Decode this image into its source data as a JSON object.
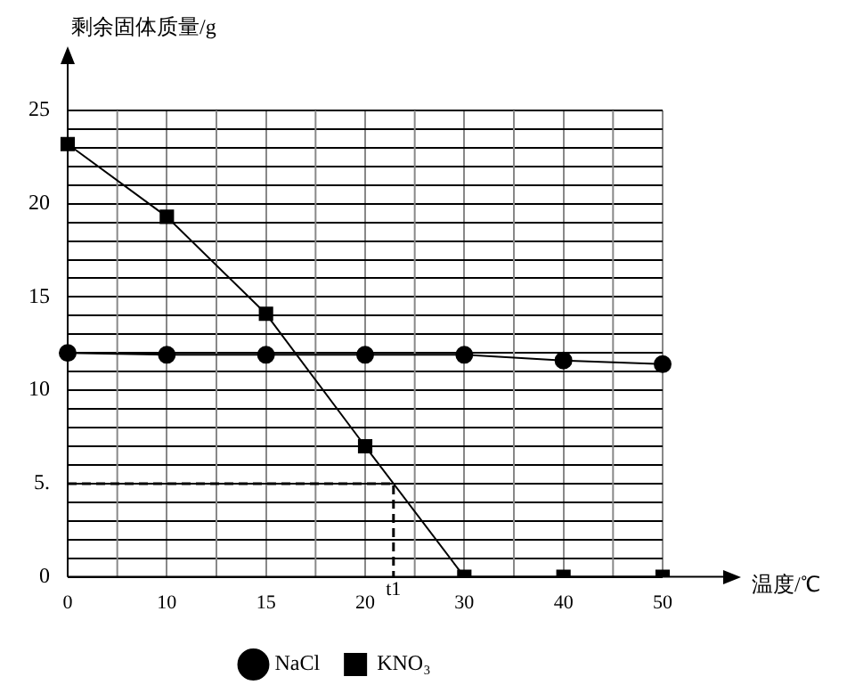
{
  "chart_data": {
    "type": "line",
    "xlabel": "温度/℃",
    "ylabel": "剩余固体质量/g",
    "categories": [
      "0",
      "10",
      "15",
      "20",
      "30",
      "40",
      "50"
    ],
    "series": [
      {
        "name": "NaCl",
        "color": "#000000",
        "marker": "circle",
        "values": [
          12,
          11.9,
          11.9,
          11.9,
          11.9,
          11.6,
          11.4
        ]
      },
      {
        "name": "KNO₃",
        "color": "#000000",
        "marker": "square",
        "values": [
          23.2,
          19.3,
          14.1,
          7,
          0,
          0,
          0
        ]
      }
    ],
    "ylim": [
      0,
      25
    ],
    "yticks": [
      0,
      {
        "value": 1,
        "label": null
      },
      {
        "value": 2,
        "label": null
      },
      {
        "value": 3,
        "label": null
      },
      {
        "value": 4,
        "label": null
      },
      {
        "value": 5,
        "label": "5."
      },
      {
        "value": 6,
        "label": null
      },
      {
        "value": 7,
        "label": null
      },
      {
        "value": 8,
        "label": null
      },
      {
        "value": 9,
        "label": null
      },
      10,
      {
        "value": 11,
        "label": null
      },
      {
        "value": 12,
        "label": null
      },
      {
        "value": 13,
        "label": null
      },
      {
        "value": 14,
        "label": null
      },
      15,
      {
        "value": 16,
        "label": null
      },
      {
        "value": 17,
        "label": null
      },
      {
        "value": 18,
        "label": null
      },
      {
        "value": 19,
        "label": null
      },
      20,
      {
        "value": 21,
        "label": null
      },
      {
        "value": 22,
        "label": null
      },
      {
        "value": 23,
        "label": null
      },
      {
        "value": 24,
        "label": null
      },
      25
    ],
    "ref_lines": [
      {
        "axis": "y",
        "value": 5,
        "line_style": "dashed"
      }
    ],
    "annotations": [
      "t1"
    ],
    "grid": true,
    "legend": "bottom"
  }
}
